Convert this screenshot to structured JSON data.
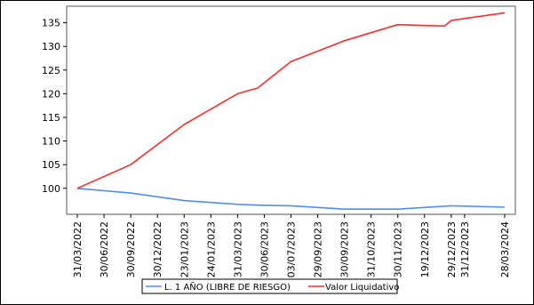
{
  "chart_data": {
    "type": "line",
    "title": "",
    "xlabel": "",
    "ylabel": "",
    "categories": [
      "31/03/2022",
      "30/06/2022",
      "30/09/2022",
      "30/12/2022",
      "23/01/2023",
      "24/01/2023",
      "31/03/2023",
      "30/06/2023",
      "03/07/2023",
      "29/09/2023",
      "30/09/2023",
      "31/10/2023",
      "30/11/2023",
      "19/12/2023",
      "29/12/2023",
      "31/12/2023",
      "28/03/2024"
    ],
    "x": [
      0,
      2,
      4,
      6,
      8,
      10,
      12,
      14,
      16,
      18,
      20,
      22,
      24,
      26,
      28,
      29,
      32
    ],
    "series": [
      {
        "name": "L. 1 AÑO (LIBRE DE RIESGO)",
        "color": "#4f8ff0",
        "x": [
          0,
          4,
          8,
          12,
          14,
          16,
          20,
          24,
          28,
          32
        ],
        "values": [
          100,
          99.0,
          97.4,
          96.6,
          96.4,
          96.3,
          95.6,
          95.6,
          96.3,
          96.0
        ]
      },
      {
        "name": "Valor Liquidativo",
        "color": "#ff2a2a",
        "x": [
          0,
          4,
          8,
          12,
          13.5,
          16,
          20,
          24,
          27.5,
          28,
          32
        ],
        "values": [
          100,
          105,
          113.5,
          120,
          121.2,
          126.8,
          131.2,
          134.6,
          134.3,
          135.5,
          137.1
        ]
      }
    ],
    "yticks": [
      100,
      105,
      110,
      115,
      120,
      125,
      130,
      135
    ],
    "ylim": [
      94.5,
      138.5
    ],
    "xlim": [
      -0.8,
      32.8
    ],
    "grid": false,
    "legend": "bottom"
  }
}
